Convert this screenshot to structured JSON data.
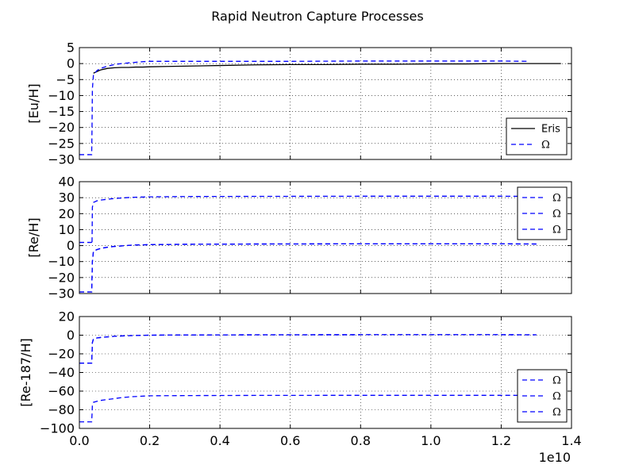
{
  "chart_data": {
    "type": "line",
    "title": "Rapid Neutron Capture Processes",
    "xlabel": "",
    "x_tick_labels": [
      "0.0",
      "0.2",
      "0.4",
      "0.6",
      "0.8",
      "1.0",
      "1.2",
      "1.4"
    ],
    "x_ticks": [
      0.0,
      0.2,
      0.4,
      0.6,
      0.8,
      1.0,
      1.2,
      1.4
    ],
    "x_offset_label": "1e10",
    "xlim": [
      0.0,
      1.4
    ],
    "grid": true,
    "panels": [
      {
        "ylabel": "[Eu/H]",
        "ylim": [
          -30,
          5
        ],
        "y_ticks": [
          5,
          0,
          -5,
          -10,
          -15,
          -20,
          -25,
          -30
        ],
        "y_tick_labels": [
          "5",
          "0",
          "−5",
          "−10",
          "−15",
          "−20",
          "−25",
          "−30"
        ],
        "legend_position": "lower-right",
        "series": [
          {
            "name": "Eris",
            "color": "#000000",
            "style": "solid",
            "x": [
              0.04,
              0.06,
              0.08,
              0.1,
              0.12,
              0.14,
              0.16,
              0.18,
              0.2,
              0.25,
              0.3,
              0.4,
              0.5,
              0.6,
              0.7,
              0.8,
              0.9,
              1.0,
              1.1,
              1.2,
              1.3,
              1.37
            ],
            "y": [
              -3.0,
              -2.0,
              -1.5,
              -1.3,
              -1.2,
              -1.2,
              -1.1,
              -1.1,
              -1.0,
              -0.9,
              -0.8,
              -0.6,
              -0.4,
              -0.3,
              -0.3,
              -0.2,
              -0.2,
              -0.1,
              -0.1,
              0.0,
              0.0,
              0.0
            ]
          },
          {
            "name": "Ω",
            "color": "#0000ff",
            "style": "dashed",
            "x": [
              0.0,
              0.035,
              0.036,
              0.037,
              0.04,
              0.05,
              0.06,
              0.08,
              0.1,
              0.12,
              0.15,
              0.18,
              0.2,
              0.3,
              0.4,
              0.6,
              0.8,
              1.0,
              1.2,
              1.28
            ],
            "y": [
              -28.5,
              -28.5,
              -20.0,
              -8.0,
              -3.5,
              -2.2,
              -1.5,
              -0.8,
              -0.3,
              0.0,
              0.3,
              0.6,
              0.7,
              0.7,
              0.7,
              0.7,
              0.8,
              0.8,
              0.8,
              0.7
            ]
          }
        ]
      },
      {
        "ylabel": "[Re/H]",
        "ylim": [
          -30,
          40
        ],
        "y_ticks": [
          40,
          30,
          20,
          10,
          0,
          -10,
          -20,
          -30
        ],
        "y_tick_labels": [
          "40",
          "30",
          "20",
          "10",
          "0",
          "−10",
          "−20",
          "−30"
        ],
        "legend_position": "upper-right",
        "series": [
          {
            "name": "Ω",
            "color": "#0000ff",
            "style": "dashed",
            "x": [
              0.0,
              0.035,
              0.036,
              0.037,
              0.04,
              0.05,
              0.06,
              0.08,
              0.1,
              0.12,
              0.15,
              0.2,
              0.3,
              0.5,
              0.8,
              1.0,
              1.2,
              1.28
            ],
            "y": [
              2.0,
              2.0,
              1.0,
              24.0,
              27.0,
              28.0,
              28.5,
              29.0,
              29.5,
              29.8,
              30.2,
              30.5,
              30.7,
              30.8,
              30.9,
              30.9,
              30.9,
              30.8
            ]
          },
          {
            "name": "Ω",
            "color": "#0000ff",
            "style": "dashed",
            "x": [
              0.0,
              0.035,
              0.036,
              0.037,
              0.04,
              0.05,
              0.06,
              0.08,
              0.1,
              0.12,
              0.15,
              0.2,
              0.3,
              0.5,
              0.8,
              1.0,
              1.2,
              1.3
            ],
            "y": [
              -29.0,
              -29.0,
              -20.0,
              -10.0,
              -3.5,
              -2.5,
              -1.8,
              -1.0,
              -0.5,
              -0.2,
              0.3,
              0.6,
              0.8,
              1.0,
              1.1,
              1.1,
              1.1,
              1.0
            ]
          },
          {
            "name": "Ω",
            "color": "#0000ff",
            "style": "dashed",
            "x": [
              0.0,
              0.035,
              0.036,
              0.037,
              0.04,
              0.05,
              0.06,
              0.08,
              0.1,
              0.12,
              0.15,
              0.2,
              0.3,
              0.5,
              0.8,
              1.0,
              1.2,
              1.3
            ],
            "y": [
              -29.0,
              -29.0,
              -20.0,
              -10.0,
              -3.5,
              -2.5,
              -1.8,
              -1.0,
              -0.5,
              -0.2,
              0.3,
              0.6,
              0.8,
              1.0,
              1.1,
              1.1,
              1.1,
              1.0
            ]
          }
        ]
      },
      {
        "ylabel": "[Re-187/H]",
        "ylim": [
          -100,
          20
        ],
        "y_ticks": [
          20,
          0,
          -20,
          -40,
          -60,
          -80,
          -100
        ],
        "y_tick_labels": [
          "20",
          "0",
          "−20",
          "−40",
          "−60",
          "−80",
          "−100"
        ],
        "legend_position": "lower-right",
        "series": [
          {
            "name": "Ω",
            "color": "#0000ff",
            "style": "dashed",
            "x": [
              0.0,
              0.035,
              0.036,
              0.037,
              0.04,
              0.05,
              0.06,
              0.08,
              0.1,
              0.12,
              0.15,
              0.2,
              0.3,
              0.5,
              0.8,
              1.0,
              1.2,
              1.3
            ],
            "y": [
              -30.0,
              -30.0,
              -20.0,
              -8.0,
              -4.0,
              -3.0,
              -2.5,
              -1.8,
              -1.2,
              -0.8,
              -0.4,
              0.0,
              0.2,
              0.4,
              0.5,
              0.5,
              0.5,
              0.4
            ]
          },
          {
            "name": "Ω",
            "color": "#0000ff",
            "style": "dashed",
            "x": [
              0.0,
              0.035,
              0.036,
              0.037,
              0.04,
              0.05,
              0.06,
              0.08,
              0.1,
              0.12,
              0.15,
              0.2,
              0.3,
              0.5,
              0.8,
              1.0,
              1.2,
              1.3
            ],
            "y": [
              -93.0,
              -93.0,
              -85.0,
              -75.0,
              -72.0,
              -71.0,
              -70.0,
              -69.0,
              -68.0,
              -67.0,
              -66.0,
              -65.0,
              -64.8,
              -64.6,
              -64.5,
              -64.5,
              -64.5,
              -64.6
            ]
          },
          {
            "name": "Ω",
            "color": "#0000ff",
            "style": "dashed",
            "x": [
              0.0,
              0.035,
              0.036,
              0.037,
              0.04,
              0.05,
              0.06,
              0.08,
              0.1,
              0.12,
              0.15,
              0.2,
              0.3,
              0.5,
              0.8,
              1.0,
              1.2,
              1.3
            ],
            "y": [
              -30.0,
              -30.0,
              -20.0,
              -8.0,
              -4.0,
              -3.0,
              -2.5,
              -1.8,
              -1.2,
              -0.8,
              -0.4,
              0.0,
              0.2,
              0.4,
              0.5,
              0.5,
              0.5,
              0.4
            ]
          }
        ]
      }
    ]
  }
}
